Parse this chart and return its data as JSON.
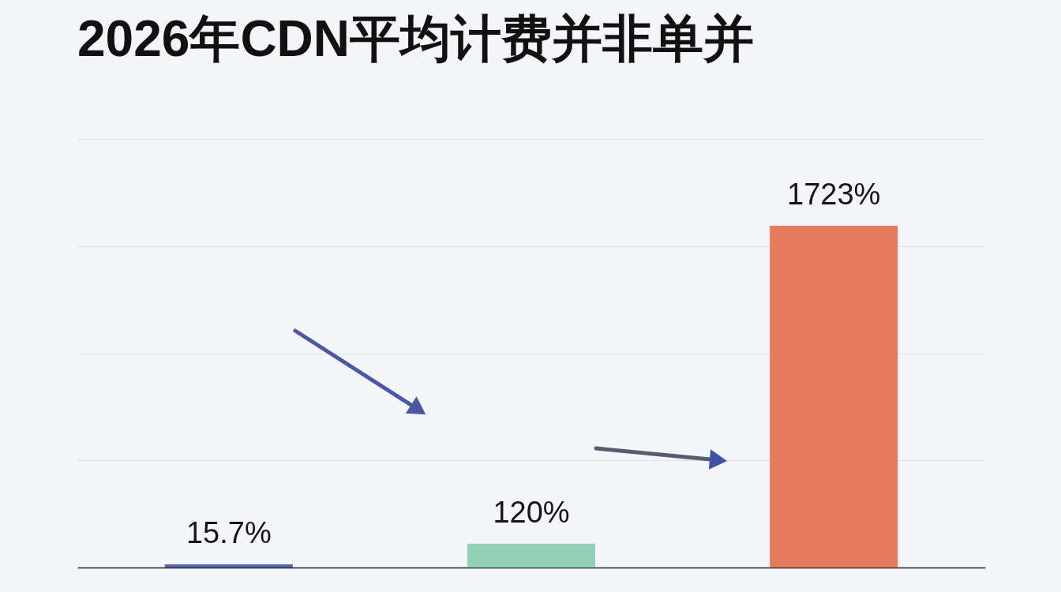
{
  "chart_data": {
    "type": "bar",
    "title": "2026年CDN平均计费并非单并",
    "categories": [
      null,
      null,
      null
    ],
    "values": [
      15.7,
      120,
      1723
    ],
    "colors": [
      "#5465b0",
      "#93d0b6",
      "#e67a5c"
    ],
    "value_labels": [
      "15.7%",
      "120%",
      "1723%"
    ],
    "grid": "y",
    "tick_labels": false
  }
}
